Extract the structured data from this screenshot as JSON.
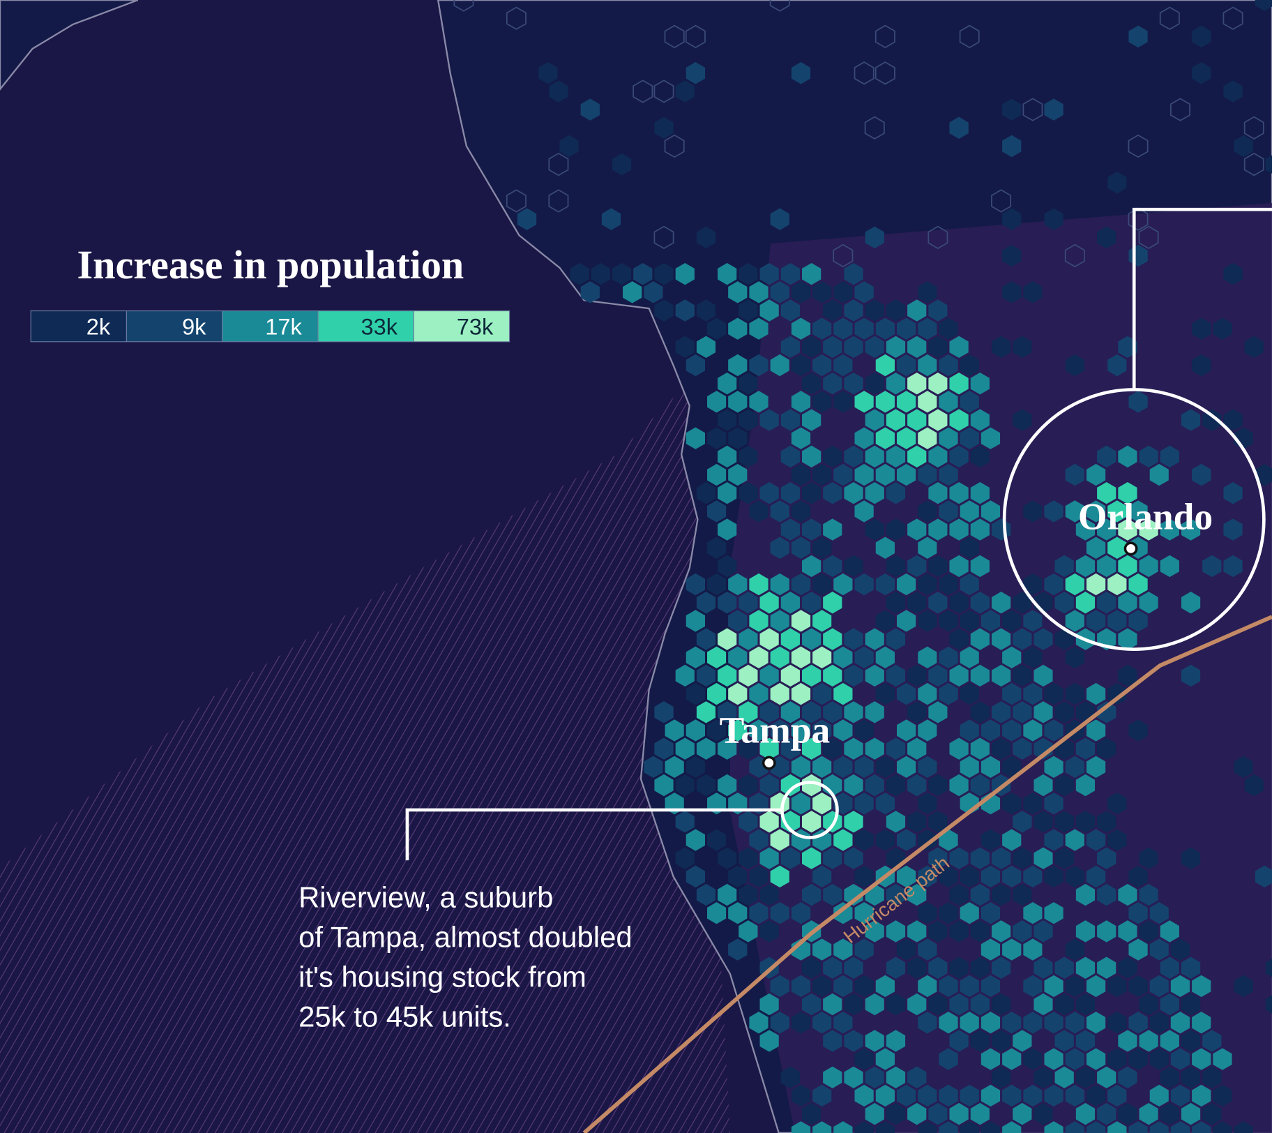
{
  "legend": {
    "title": "Increase in population",
    "items": [
      {
        "label": "2k",
        "color": "#0e2a55"
      },
      {
        "label": "9k",
        "color": "#14446e"
      },
      {
        "label": "17k",
        "color": "#1a8a96"
      },
      {
        "label": "33k",
        "color": "#2fd0aa"
      },
      {
        "label": "73k",
        "color": "#9cf0c2"
      }
    ]
  },
  "places": [
    {
      "label": "Orlando"
    },
    {
      "label": "Tampa"
    }
  ],
  "route_label": "Hurricane path",
  "annotation": {
    "lines": [
      "Riverview, a suburb",
      "of Tampa, almost doubled",
      "it's housing stock from",
      "25k to 45k units."
    ]
  }
}
